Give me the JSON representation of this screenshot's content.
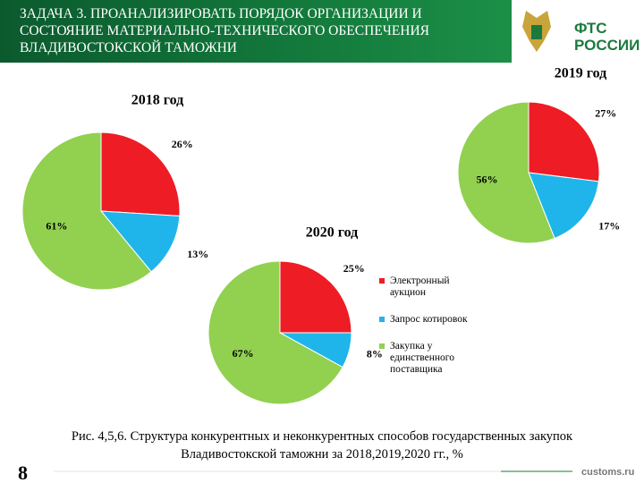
{
  "header": {
    "title": "ЗАДАЧА 3. ПРОАНАЛИЗИРОВАТЬ ПОРЯДОК ОРГАНИЗАЦИИ И СОСТОЯНИЕ МАТЕРИАЛЬНО-ТЕХНИЧЕСКОГО ОБЕСПЕЧЕНИЯ ВЛАДИВОСТОКСКОЙ ТАМОЖНИ"
  },
  "logo": {
    "lines": [
      "ФТС",
      "РОССИИ"
    ]
  },
  "caption": "Рис. 4,5,6. Структура конкурентных и неконкурентных способов государственных закупок Владивостокской таможни за 2018,2019,2020 гг., %",
  "page_number": "8",
  "website": "customs.ru",
  "chart_data": [
    {
      "type": "pie",
      "title": "2018 год",
      "values": [
        26,
        13,
        61
      ],
      "value_labels": [
        "26%",
        "13%",
        "61%"
      ],
      "colors": [
        "#ee1c25",
        "#1fb5ea",
        "#92d050"
      ]
    },
    {
      "type": "pie",
      "title": "2019 год",
      "values": [
        27,
        17,
        56
      ],
      "value_labels": [
        "27%",
        "17%",
        "56%"
      ],
      "colors": [
        "#ee1c25",
        "#1fb5ea",
        "#92d050"
      ]
    },
    {
      "type": "pie",
      "title": "2020 год",
      "values": [
        25,
        8,
        67
      ],
      "value_labels": [
        "25%",
        "8%",
        "67%"
      ],
      "colors": [
        "#ee1c25",
        "#1fb5ea",
        "#92d050"
      ],
      "categories": [
        "Электронный аукцион",
        "Запрос котировок",
        "Закупка у единственного поставщика"
      ],
      "legend": true
    }
  ]
}
